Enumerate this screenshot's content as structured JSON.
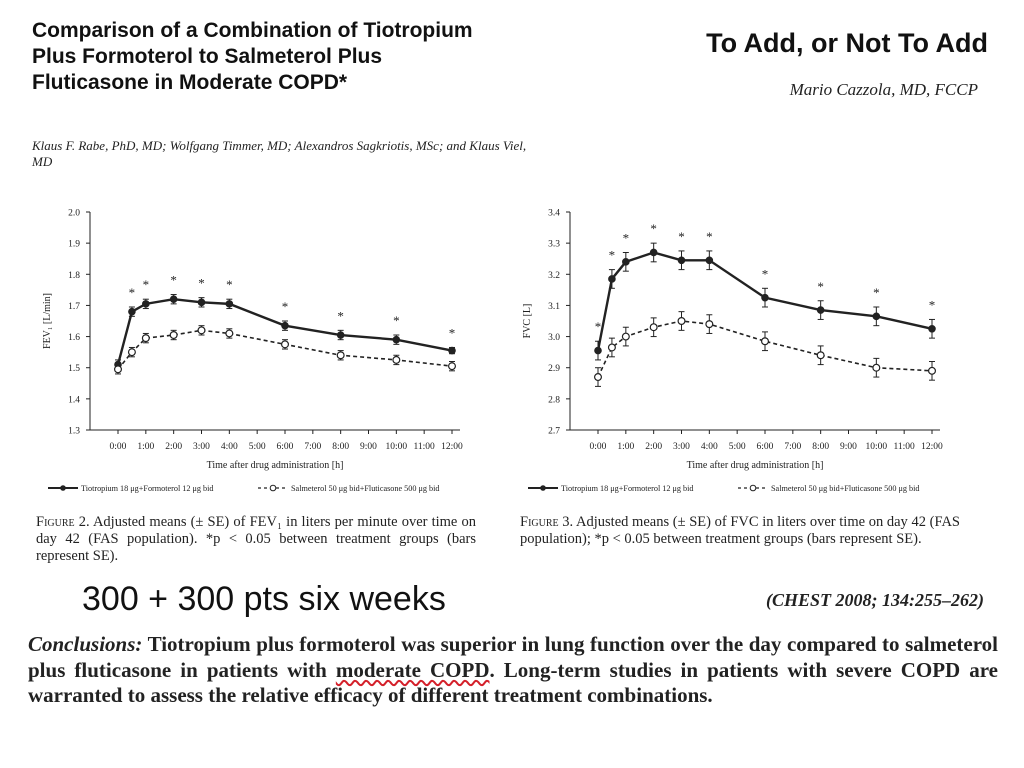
{
  "paper": {
    "title": "Comparison of a Combination of Tiotropium Plus Formoterol to Salmeterol Plus Fluticasone in Moderate COPD*",
    "authors": "Klaus F. Rabe, PhD, MD; Wolfgang Timmer, MD; Alexandros Sagkriotis, MSc; and Klaus Viel, MD"
  },
  "editorial": {
    "title": "To Add, or Not To Add",
    "author": "Mario Cazzola, MD, FCCP"
  },
  "note": "300 + 300 pts six weeks",
  "citation": "(CHEST 2008; 134:255–262)",
  "conclusions": {
    "lead": "Conclusions:",
    "text_before": "Tiotropium plus formoterol was superior in lung function over the day compared to salmeterol plus fluticasone in patients with",
    "highlight": "moderate COPD",
    "text_after": ". Long-term studies in patients with severe COPD are warranted to assess the relative efficacy of different treatment combinations."
  },
  "colors": {
    "ink": "#222222",
    "highlight_underline": "#d4202a"
  },
  "chart_data": [
    {
      "type": "line",
      "ylabel": "FEV₁ [L/min]",
      "xlabel": "Time after drug administration [h]",
      "ylim": [
        1.3,
        2.0
      ],
      "yticks": [
        "1.3",
        "1.4",
        "1.5",
        "1.6",
        "1.7",
        "1.8",
        "1.9",
        "2.0"
      ],
      "x": [
        0,
        1,
        2,
        3,
        4,
        5,
        6,
        7,
        8,
        9,
        10,
        11,
        12
      ],
      "xtick_labels": [
        "0:00",
        "1:00",
        "2:00",
        "3:00",
        "4:00",
        "5:00",
        "6:00",
        "7:00",
        "8:00",
        "9:00",
        "10:00",
        "11:00",
        "12:00"
      ],
      "grid": false,
      "legend": "bottom",
      "series": [
        {
          "name": "Tiotropium 18 μg+Formoterol 12 μg bid",
          "style": "solid-filled",
          "x": [
            0,
            0.5,
            1,
            2,
            3,
            4,
            6,
            8,
            10,
            12
          ],
          "values": [
            1.51,
            1.68,
            1.705,
            1.72,
            1.71,
            1.705,
            1.635,
            1.605,
            1.59,
            1.555
          ],
          "se": [
            0.015,
            0.015,
            0.015,
            0.015,
            0.015,
            0.015,
            0.015,
            0.015,
            0.015,
            0.01
          ]
        },
        {
          "name": "Salmeterol 50 μg bid+Fluticasone 500 μg bid",
          "style": "dashed-open",
          "x": [
            0,
            0.5,
            1,
            2,
            3,
            4,
            6,
            8,
            10,
            12
          ],
          "values": [
            1.495,
            1.55,
            1.595,
            1.605,
            1.62,
            1.61,
            1.575,
            1.54,
            1.525,
            1.505
          ],
          "se": [
            0.015,
            0.015,
            0.015,
            0.015,
            0.015,
            0.015,
            0.015,
            0.015,
            0.015,
            0.015
          ]
        }
      ],
      "significance_marker": "*",
      "significance_x": [
        0.5,
        1,
        2,
        3,
        4,
        6,
        8,
        10,
        12
      ],
      "caption": {
        "label": "Figure 2.",
        "text": "Adjusted means (± SE) of FEV₁ in liters per minute over time on day 42 (FAS population). *p < 0.05 between treatment groups (bars represent SE)."
      }
    },
    {
      "type": "line",
      "ylabel": "FVC [L]",
      "xlabel": "Time after drug administration [h]",
      "ylim": [
        2.7,
        3.4
      ],
      "yticks": [
        "2.7",
        "2.8",
        "2.9",
        "3.0",
        "3.1",
        "3.2",
        "3.3",
        "3.4"
      ],
      "x": [
        0,
        1,
        2,
        3,
        4,
        5,
        6,
        7,
        8,
        9,
        10,
        11,
        12
      ],
      "xtick_labels": [
        "0:00",
        "1:00",
        "2:00",
        "3:00",
        "4:00",
        "5:00",
        "6:00",
        "7:00",
        "8:00",
        "9:00",
        "10:00",
        "11:00",
        "12:00"
      ],
      "grid": false,
      "legend": "bottom",
      "series": [
        {
          "name": "Tiotropium 18 μg+Formoterol 12 μg bid",
          "style": "solid-filled",
          "x": [
            0,
            0.5,
            1,
            2,
            3,
            4,
            6,
            8,
            10,
            12
          ],
          "values": [
            2.955,
            3.185,
            3.24,
            3.27,
            3.245,
            3.245,
            3.125,
            3.085,
            3.065,
            3.025
          ],
          "se": [
            0.03,
            0.03,
            0.03,
            0.03,
            0.03,
            0.03,
            0.03,
            0.03,
            0.03,
            0.03
          ]
        },
        {
          "name": "Salmeterol 50 μg bid+Fluticasone 500 μg bid",
          "style": "dashed-open",
          "x": [
            0,
            0.5,
            1,
            2,
            3,
            4,
            6,
            8,
            10,
            12
          ],
          "values": [
            2.87,
            2.965,
            3.0,
            3.03,
            3.05,
            3.04,
            2.985,
            2.94,
            2.9,
            2.89
          ],
          "se": [
            0.03,
            0.03,
            0.03,
            0.03,
            0.03,
            0.03,
            0.03,
            0.03,
            0.03,
            0.03
          ]
        }
      ],
      "significance_marker": "*",
      "significance_x": [
        0,
        0.5,
        1,
        2,
        3,
        4,
        6,
        8,
        10,
        12
      ],
      "caption": {
        "label": "Figure 3.",
        "text": "Adjusted means (± SE) of FVC in liters over time on day 42 (FAS population); *p < 0.05 between treatment groups (bars represent SE)."
      }
    }
  ]
}
